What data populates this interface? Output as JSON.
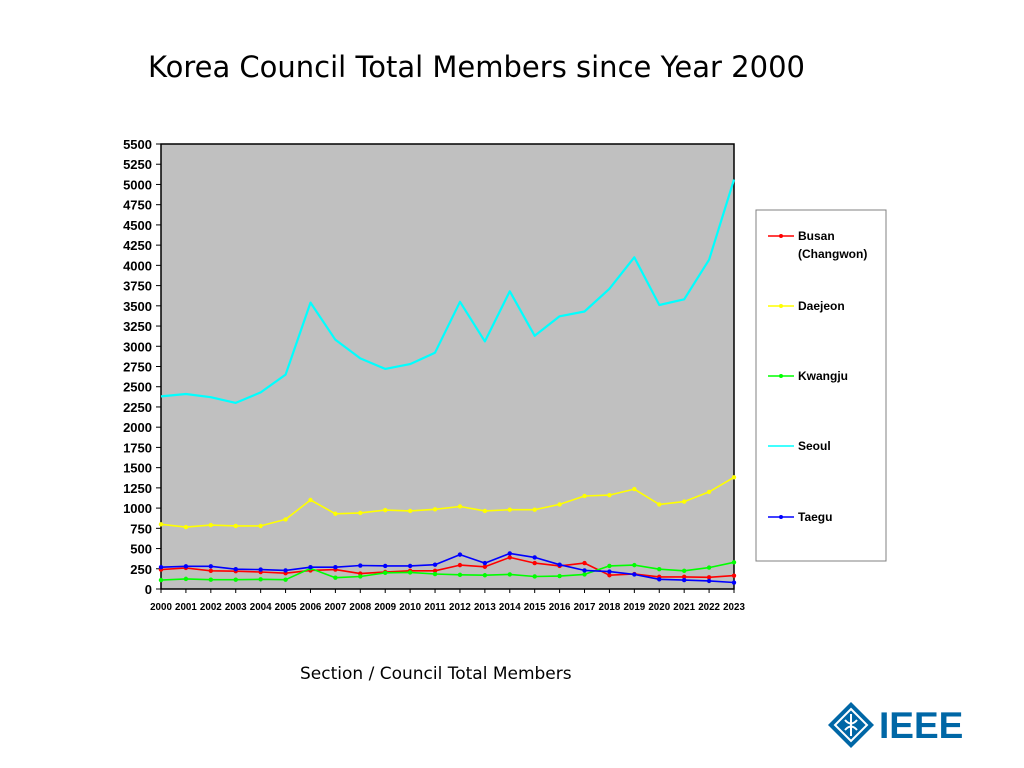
{
  "title": "Korea Council Total Members since Year 2000",
  "caption": "Section / Council Total Members",
  "logo": {
    "text": "IEEE",
    "color": "#0067a6"
  },
  "chart_data": {
    "type": "line",
    "title": "Korea Council Total Members since Year 2000",
    "xlabel": "",
    "ylabel": "",
    "ylim": [
      0,
      5500
    ],
    "ystep": 250,
    "grid": false,
    "plot_background": "#c0c0c0",
    "legend_position": "right",
    "categories": [
      "2000",
      "2001",
      "2002",
      "2003",
      "2004",
      "2005",
      "2006",
      "2007",
      "2008",
      "2009",
      "2010",
      "2011",
      "2012",
      "2013",
      "2014",
      "2015",
      "2016",
      "2017",
      "2018",
      "2019",
      "2020",
      "2021",
      "2022",
      "2023"
    ],
    "series": [
      {
        "name": "Busan (Changwon)",
        "color": "#ff0000",
        "marker": true,
        "values": [
          240,
          260,
          225,
          220,
          210,
          195,
          230,
          240,
          190,
          210,
          225,
          225,
          295,
          275,
          390,
          320,
          285,
          320,
          170,
          185,
          150,
          150,
          145,
          165
        ]
      },
      {
        "name": "Daejeon",
        "color": "#ffff00",
        "marker": true,
        "values": [
          800,
          765,
          790,
          780,
          780,
          860,
          1100,
          930,
          940,
          975,
          965,
          985,
          1020,
          965,
          980,
          980,
          1045,
          1150,
          1160,
          1235,
          1045,
          1080,
          1200,
          1380
        ]
      },
      {
        "name": "Kwangju",
        "color": "#00ff00",
        "marker": true,
        "values": [
          110,
          125,
          115,
          115,
          120,
          115,
          255,
          140,
          155,
          200,
          205,
          185,
          175,
          170,
          180,
          155,
          160,
          180,
          285,
          295,
          245,
          225,
          265,
          330
        ]
      },
      {
        "name": "Seoul",
        "color": "#00ffff",
        "marker": false,
        "values": [
          2380,
          2410,
          2370,
          2300,
          2430,
          2650,
          3540,
          3080,
          2850,
          2720,
          2780,
          2920,
          3550,
          3060,
          3680,
          3130,
          3370,
          3430,
          3710,
          4100,
          3510,
          3580,
          4070,
          5060
        ]
      },
      {
        "name": "Taegu",
        "color": "#0000ff",
        "marker": true,
        "values": [
          270,
          280,
          280,
          245,
          240,
          230,
          270,
          270,
          290,
          285,
          285,
          300,
          425,
          320,
          440,
          390,
          300,
          230,
          215,
          180,
          120,
          110,
          100,
          80
        ]
      }
    ]
  }
}
